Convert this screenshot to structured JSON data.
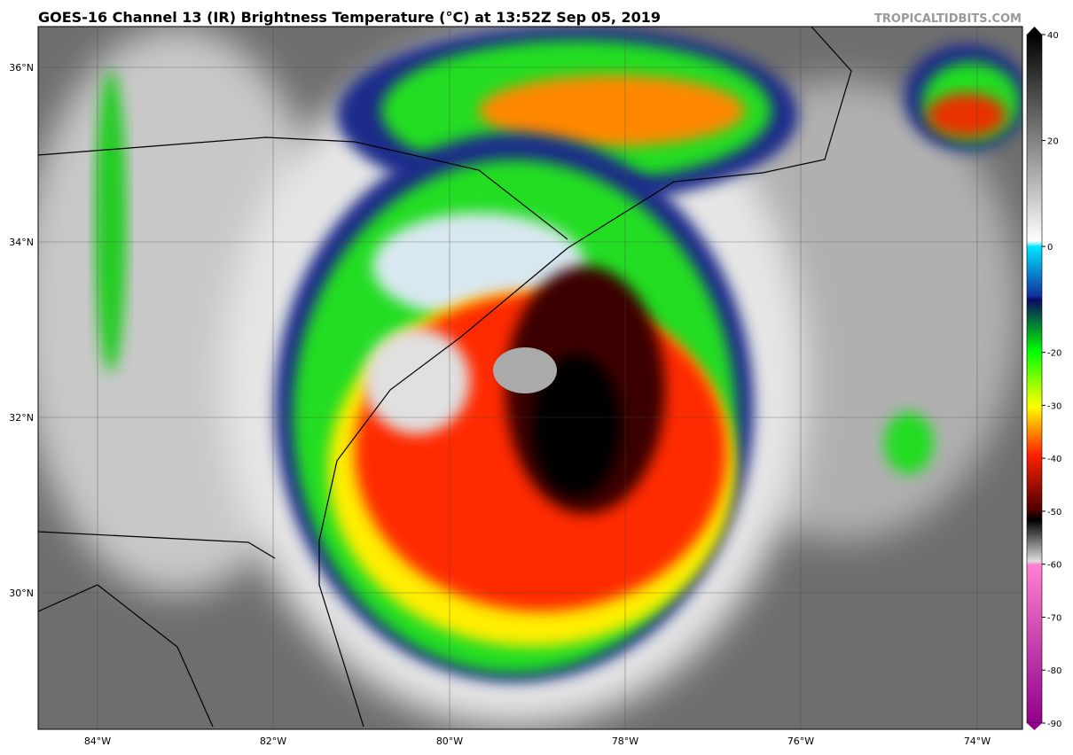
{
  "header": {
    "title": "GOES-16 Channel 13 (IR) Brightness Temperature (°C) at 13:52Z Sep 05, 2019",
    "source": "TROPICALTIDBITS.COM"
  },
  "map": {
    "latitude_labels": [
      "36°N",
      "34°N",
      "32°N",
      "30°N"
    ],
    "longitude_labels": [
      "84°W",
      "82°W",
      "80°W",
      "78°W",
      "76°W",
      "74°W"
    ]
  },
  "colorbar": {
    "lim": [
      -90,
      40
    ],
    "ticks": [
      40,
      20,
      0,
      -20,
      -30,
      -40,
      -50,
      -60,
      -70,
      -80,
      -90
    ]
  }
}
